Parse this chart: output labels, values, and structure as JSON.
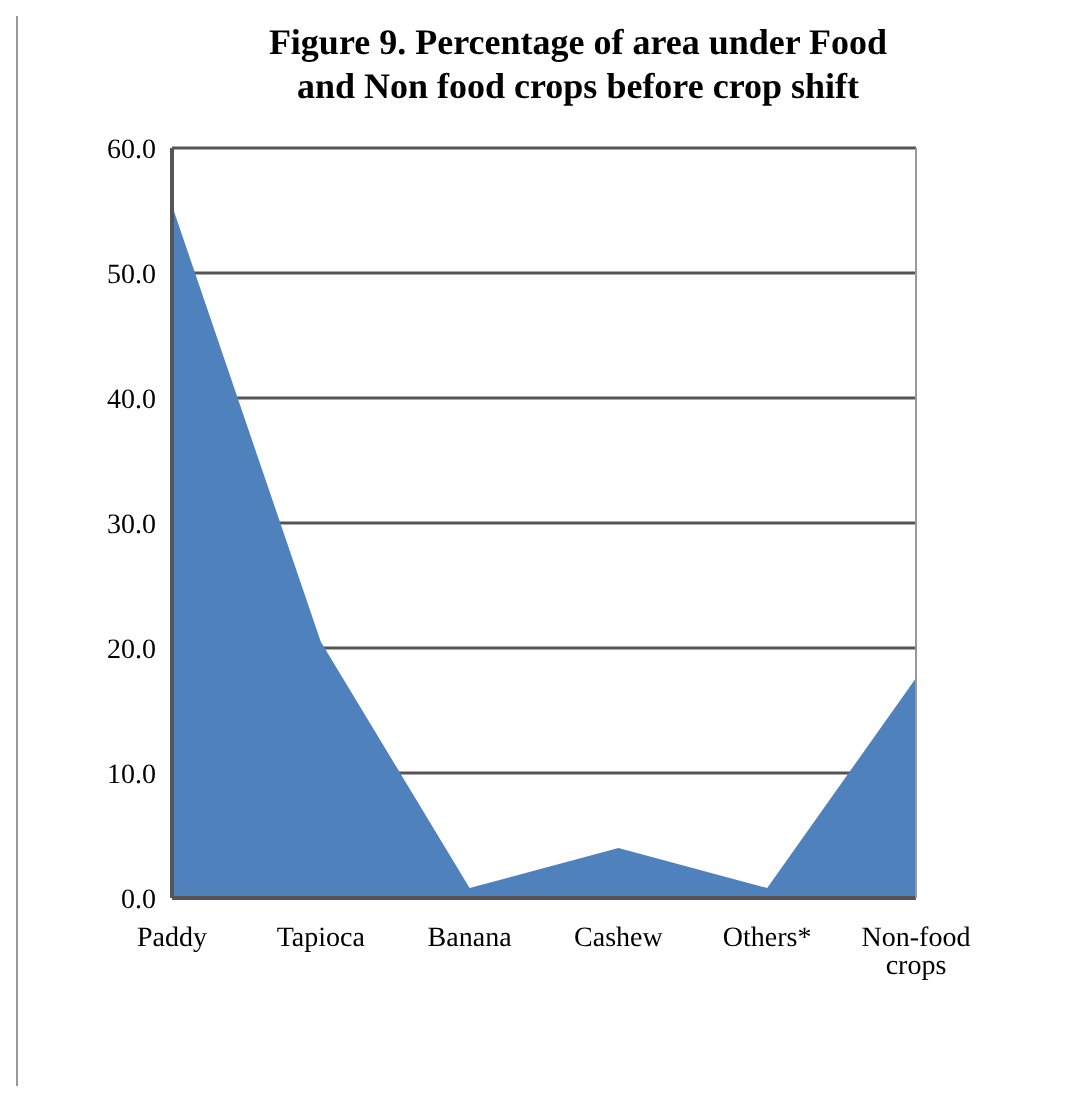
{
  "chart_data": {
    "type": "area",
    "title": "Figure 9. Percentage of area under Food and Non food crops before crop shift",
    "categories": [
      "Paddy",
      "Tapioca",
      "Banana",
      "Cashew",
      "Others*",
      "Non-food crops"
    ],
    "values": [
      55.4,
      20.5,
      0.8,
      4.0,
      0.8,
      17.6
    ],
    "color": "#4f81bd",
    "ylim": [
      0,
      60
    ],
    "yticks": [
      {
        "value": 0,
        "label": "0.0"
      },
      {
        "value": 10,
        "label": "10.0"
      },
      {
        "value": 20,
        "label": "20.0"
      },
      {
        "value": 30,
        "label": "30.0"
      },
      {
        "value": 40,
        "label": "40.0"
      },
      {
        "value": 50,
        "label": "50.0"
      },
      {
        "value": 60,
        "label": "60.0"
      }
    ],
    "grid": "y"
  }
}
